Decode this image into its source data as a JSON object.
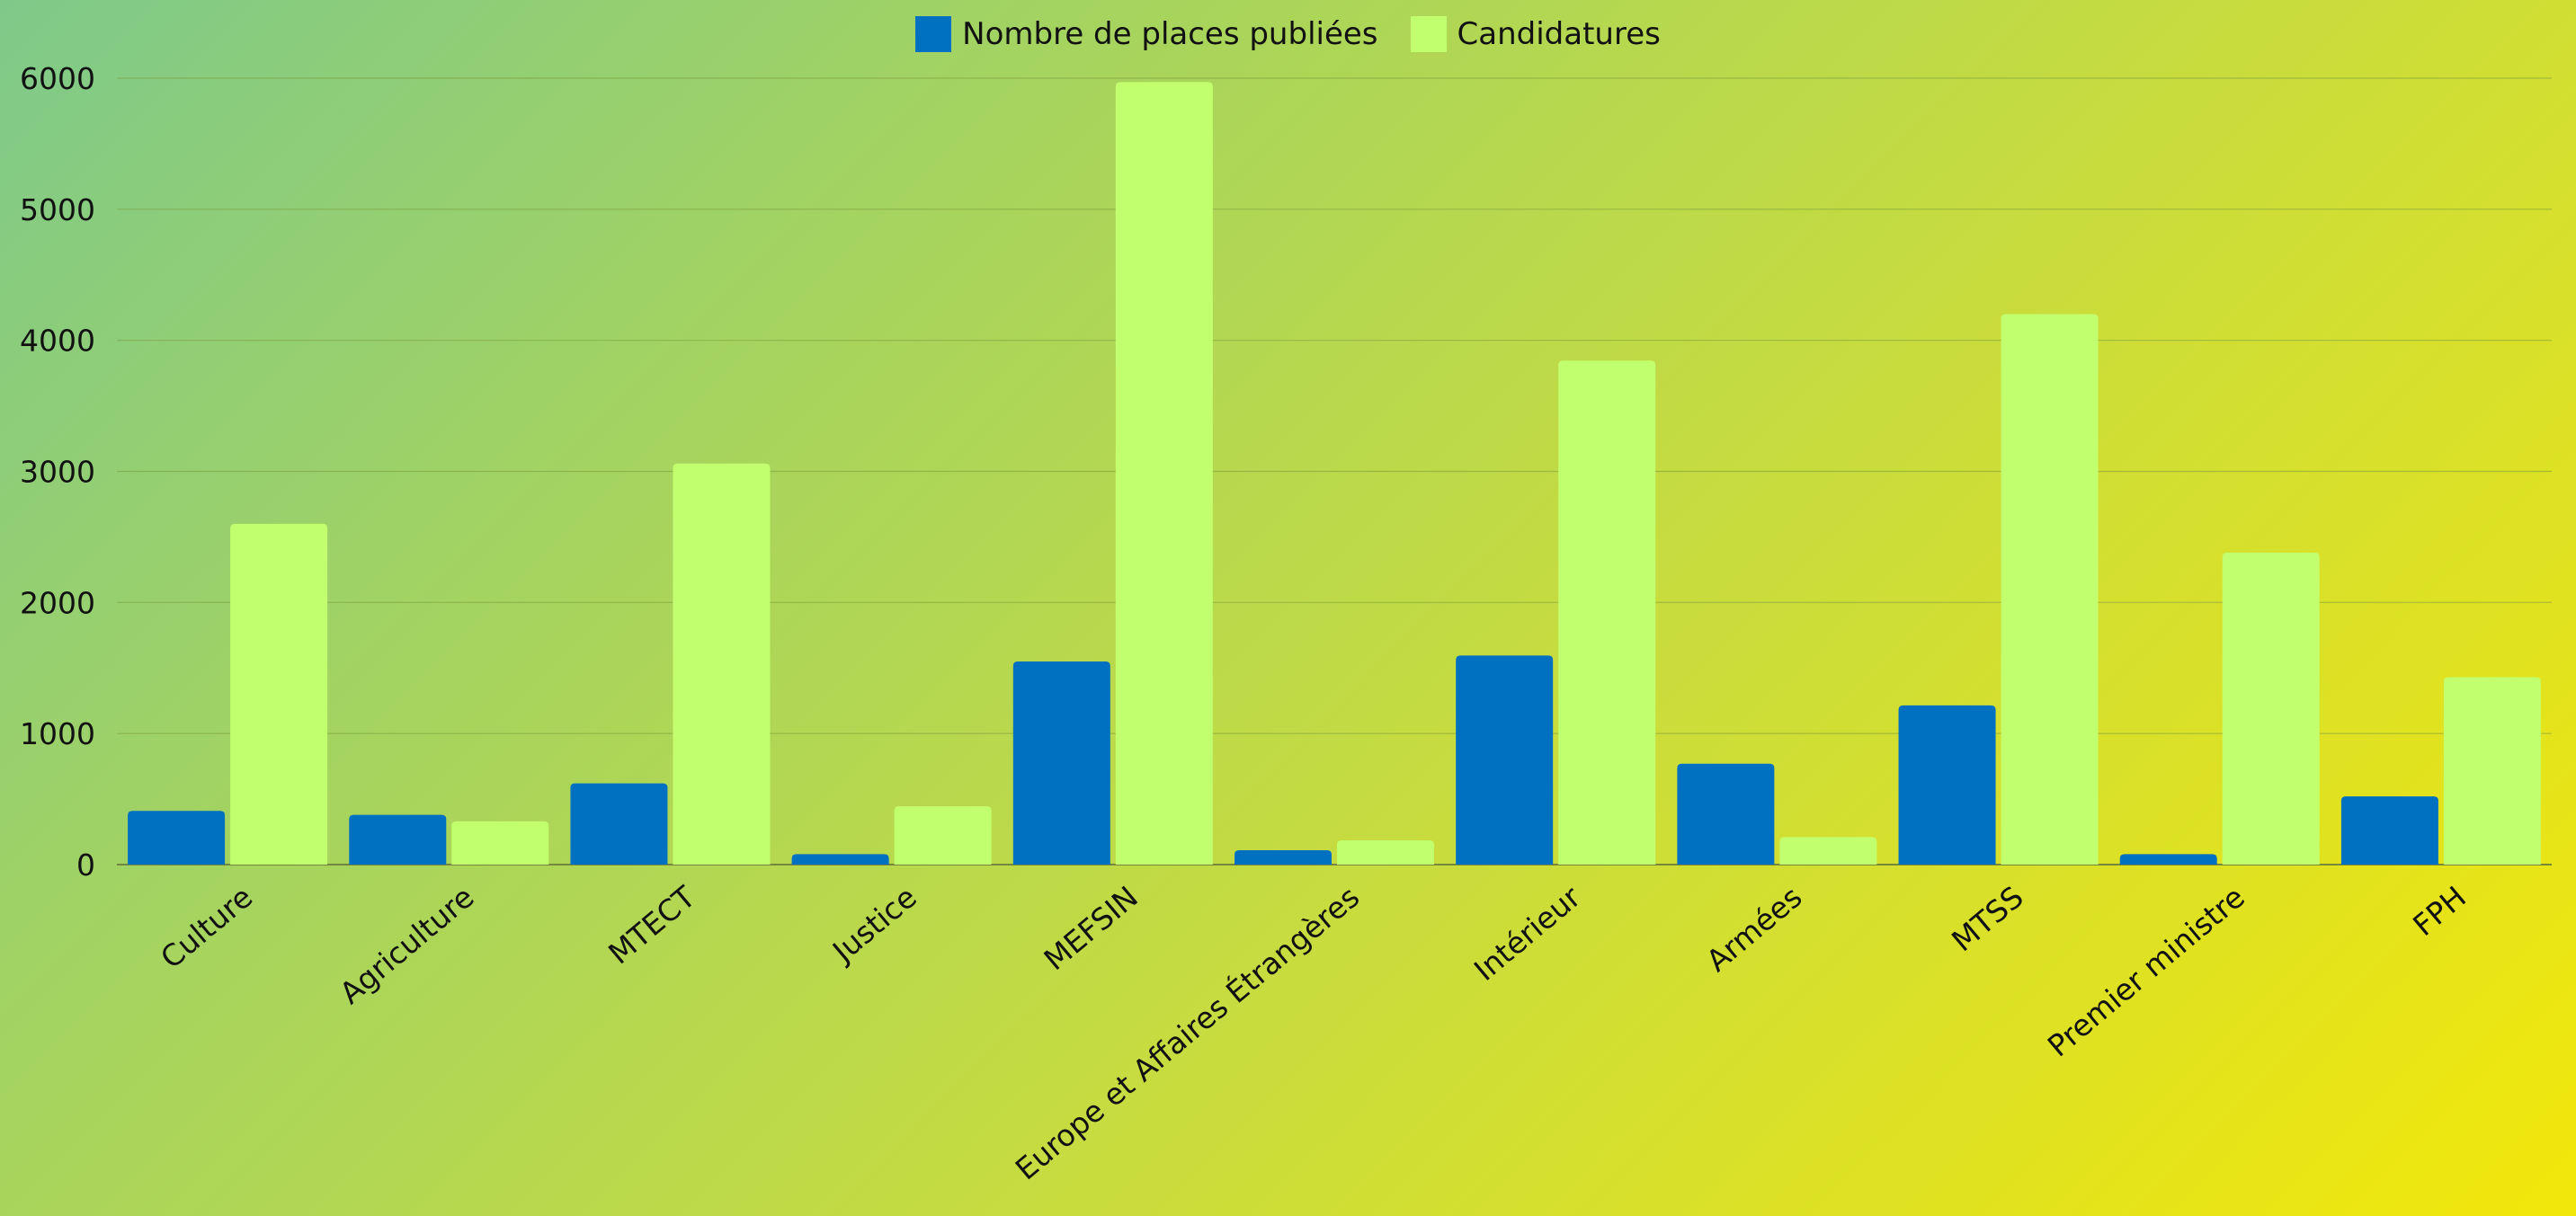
{
  "colors": {
    "places": "#0070c0",
    "candidatures": "#c2ff6e",
    "grid": "#7a9a3a",
    "axis": "#6b7d3a"
  },
  "chart_data": {
    "type": "bar",
    "title": "",
    "xlabel": "",
    "ylabel": "",
    "ylim": [
      0,
      6000
    ],
    "yticks": [
      0,
      1000,
      2000,
      3000,
      4000,
      5000,
      6000
    ],
    "grid": true,
    "legend_position": "top-center",
    "categories": [
      "Culture",
      "Agriculture",
      "MTECT",
      "Justice",
      "MEFSIN",
      "Europe et Affaires Étrangères",
      "Intérieur",
      "Armées",
      "MTSS",
      "Premier ministre",
      "FPH"
    ],
    "series": [
      {
        "name": "Nombre de places publiées",
        "color_key": "places",
        "values": [
          410,
          380,
          620,
          80,
          1550,
          110,
          1595,
          770,
          1215,
          80,
          520
        ]
      },
      {
        "name": "Candidatures",
        "color_key": "candidatures",
        "values": [
          2600,
          330,
          3060,
          445,
          5970,
          185,
          3845,
          210,
          4200,
          2380,
          1430
        ]
      }
    ]
  }
}
